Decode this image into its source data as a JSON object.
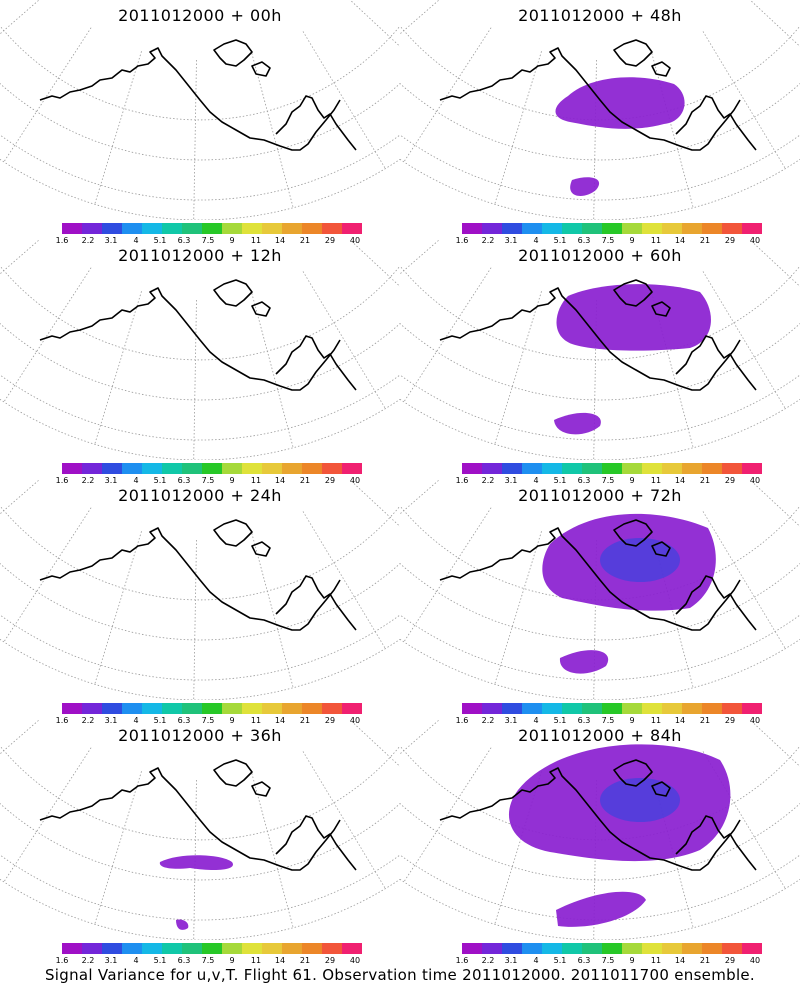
{
  "colorbar": {
    "colors": [
      "#9f10c6",
      "#7326d9",
      "#2f4ce0",
      "#1e8ff0",
      "#14b8e6",
      "#10c8a8",
      "#1fc27a",
      "#27c827",
      "#a6d93a",
      "#dfe23a",
      "#e7c93a",
      "#e8a52f",
      "#ec8628",
      "#f2553a",
      "#f02070"
    ],
    "labels": [
      "1.6",
      "2.2",
      "3.1",
      "4",
      "5.1",
      "6.3",
      "7.5",
      "9",
      "11",
      "14",
      "21",
      "29",
      "40"
    ]
  },
  "panels": [
    {
      "title": "2011012000 + 00h",
      "level": 0
    },
    {
      "title": "2011012000 + 48h",
      "level": 2
    },
    {
      "title": "2011012000 + 12h",
      "level": 0
    },
    {
      "title": "2011012000 + 60h",
      "level": 3
    },
    {
      "title": "2011012000 + 24h",
      "level": 0
    },
    {
      "title": "2011012000 + 72h",
      "level": 4
    },
    {
      "title": "2011012000 + 36h",
      "level": 1
    },
    {
      "title": "2011012000 + 84h",
      "level": 5
    }
  ],
  "footer": "Signal Variance for u,v,T. Flight 61. Observation time 2011012000. 2011011700 ensemble."
}
